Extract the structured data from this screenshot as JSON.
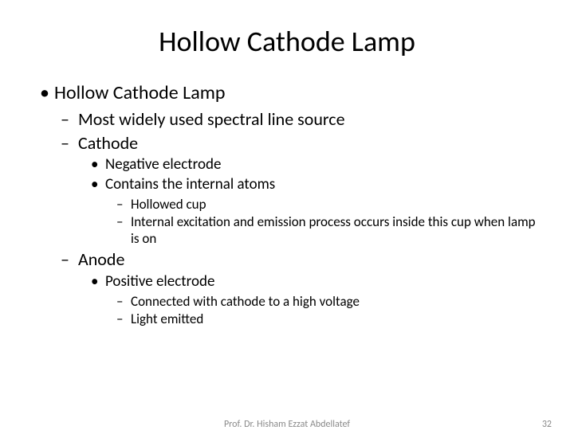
{
  "slide": {
    "title": "Hollow Cathode Lamp",
    "background_color": "#ffffff",
    "text_color": "#000000",
    "title_fontsize": 36,
    "bullets": {
      "lvl1": [
        {
          "text": "Hollow Cathode Lamp",
          "lvl2": [
            {
              "text": "Most widely used spectral line source"
            },
            {
              "text": "Cathode",
              "lvl3": [
                {
                  "text": "Negative electrode"
                },
                {
                  "text": "Contains the internal atoms",
                  "lvl4": [
                    {
                      "text": "Hollowed cup"
                    },
                    {
                      "text": "Internal excitation and emission process occurs inside this cup when lamp is on"
                    }
                  ]
                }
              ]
            },
            {
              "text": "Anode",
              "lvl3": [
                {
                  "text": "Positive electrode",
                  "lvl4": [
                    {
                      "text": "Connected with cathode to a high voltage"
                    },
                    {
                      "text": "Light emitted"
                    }
                  ]
                }
              ]
            }
          ]
        }
      ]
    },
    "footer": {
      "author": "Prof. Dr. Hisham Ezzat Abdellatef",
      "page_number": "32",
      "color": "#8a8a8a",
      "fontsize": 12
    },
    "font_family": "Calibri",
    "lvl1_fontsize": 24,
    "lvl2_fontsize": 22,
    "lvl3_fontsize": 19,
    "lvl4_fontsize": 17
  }
}
